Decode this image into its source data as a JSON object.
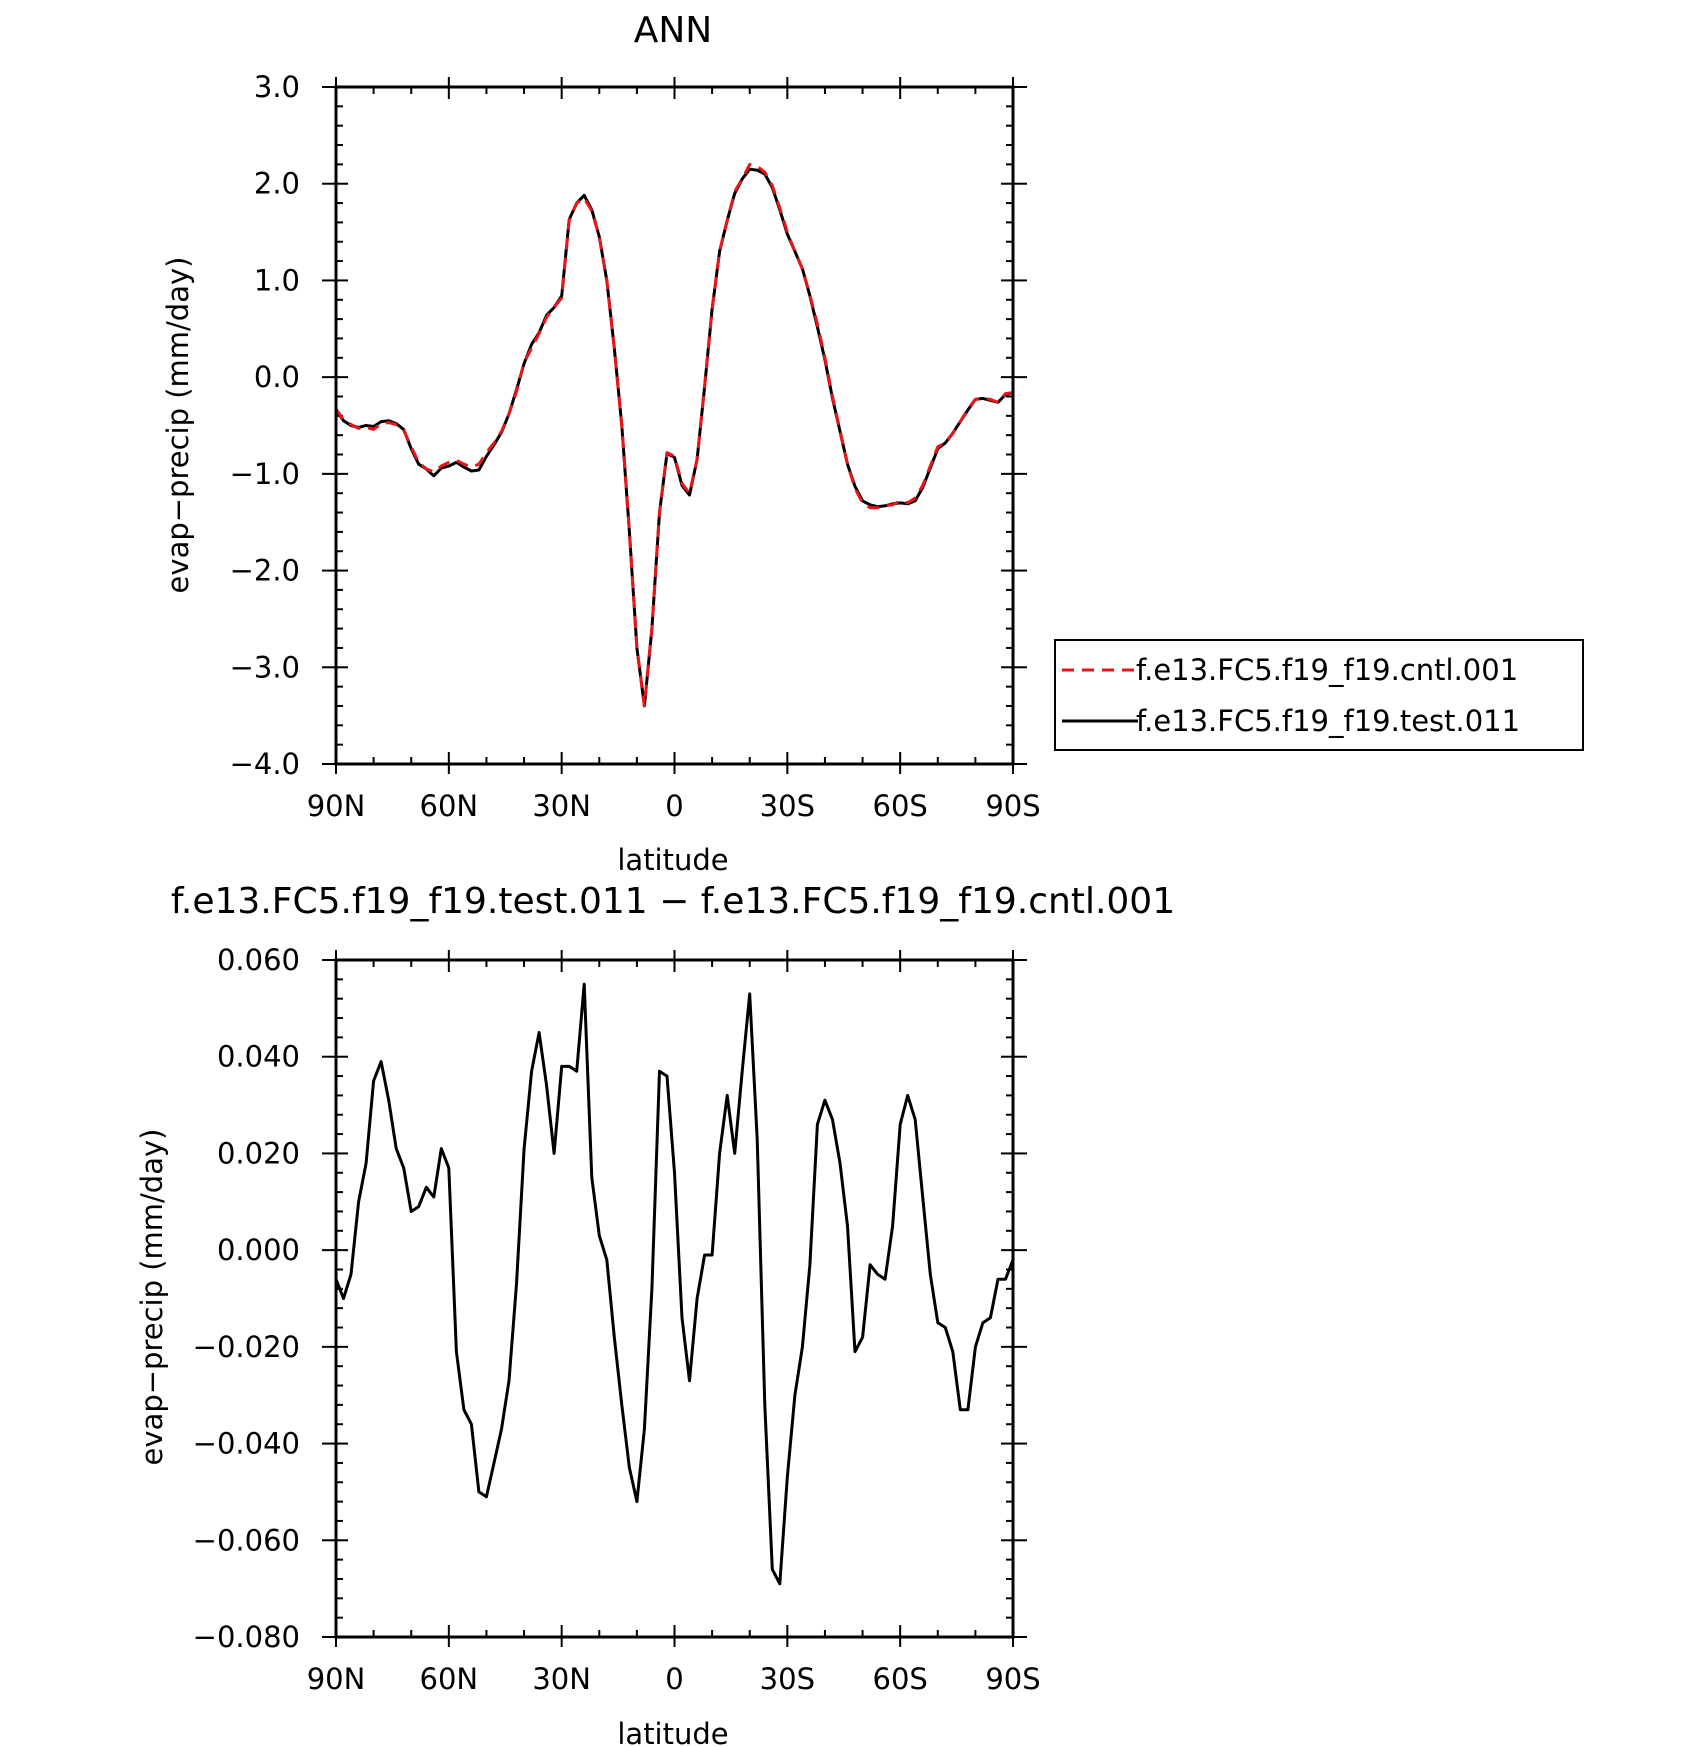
{
  "figure": {
    "top_title": "ANN",
    "bottom_title": "f.e13.FC5.f19_f19.test.011 − f.e13.FC5.f19_f19.cntl.001"
  },
  "chart_data": [
    {
      "id": "top",
      "type": "line",
      "title": "ANN",
      "xlabel": "latitude",
      "ylabel": "evap−precip (mm/day)",
      "xlim": [
        90,
        -90
      ],
      "ylim": [
        -4.0,
        3.0
      ],
      "x_ticks": [
        90,
        60,
        30,
        0,
        -30,
        -60,
        -90
      ],
      "x_tick_labels": [
        "90N",
        "60N",
        "30N",
        "0",
        "30S",
        "60S",
        "90S"
      ],
      "y_ticks": [
        3.0,
        2.0,
        1.0,
        0.0,
        -1.0,
        -2.0,
        -3.0,
        -4.0
      ],
      "y_tick_labels": [
        "3.0",
        "2.0",
        "1.0",
        "0.0",
        "−1.0",
        "−2.0",
        "−3.0",
        "−4.0"
      ],
      "legend": {
        "position": "right",
        "entries": [
          {
            "label": "f.e13.FC5.f19_f19.cntl.001",
            "color": "#e8161a",
            "dash": "dashed"
          },
          {
            "label": "f.e13.FC5.f19_f19.test.011",
            "color": "#000000",
            "dash": "solid"
          }
        ]
      },
      "series": [
        {
          "name": "f.e13.FC5.f19_f19.cntl.001",
          "color": "#e8161a",
          "dash": "dashed",
          "x": [
            90,
            88,
            86,
            84,
            82,
            80,
            78,
            76,
            74,
            72,
            70,
            68,
            66,
            64,
            62,
            60,
            58,
            56,
            54,
            52,
            50,
            48,
            46,
            44,
            42,
            40,
            38,
            36,
            34,
            32,
            30,
            28,
            26,
            24,
            22,
            20,
            18,
            16,
            14,
            12,
            10,
            8,
            6,
            4,
            2,
            0,
            -2,
            -4,
            -6,
            -8,
            -10,
            -12,
            -14,
            -16,
            -18,
            -20,
            -22,
            -24,
            -26,
            -28,
            -30,
            -32,
            -34,
            -36,
            -38,
            -40,
            -42,
            -44,
            -46,
            -48,
            -50,
            -52,
            -54,
            -56,
            -58,
            -60,
            -62,
            -64,
            -66,
            -68,
            -70,
            -72,
            -74,
            -76,
            -78,
            -80,
            -82,
            -84,
            -86,
            -88,
            -90
          ],
          "values": [
            -0.33,
            -0.44,
            -0.49,
            -0.53,
            -0.52,
            -0.54,
            -0.48,
            -0.47,
            -0.49,
            -0.55,
            -0.72,
            -0.88,
            -0.95,
            -0.98,
            -0.92,
            -0.88,
            -0.86,
            -0.9,
            -0.93,
            -0.9,
            -0.78,
            -0.68,
            -0.56,
            -0.38,
            -0.15,
            0.15,
            0.3,
            0.45,
            0.62,
            0.72,
            0.82,
            1.62,
            1.8,
            1.85,
            1.72,
            1.45,
            1.0,
            0.3,
            -0.5,
            -1.6,
            -2.8,
            -3.4,
            -2.6,
            -1.4,
            -0.78,
            -0.82,
            -1.1,
            -1.2,
            -0.85,
            -0.1,
            0.7,
            1.3,
            1.62,
            1.92,
            2.05,
            2.2,
            2.18,
            2.12,
            1.98,
            1.75,
            1.5,
            1.3,
            1.12,
            0.85,
            0.55,
            0.2,
            -0.2,
            -0.55,
            -0.9,
            -1.15,
            -1.3,
            -1.35,
            -1.35,
            -1.33,
            -1.32,
            -1.28,
            -1.3,
            -1.25,
            -1.12,
            -0.92,
            -0.72,
            -0.68,
            -0.58,
            -0.46,
            -0.33,
            -0.23,
            -0.22,
            -0.23,
            -0.26,
            -0.17,
            -0.16
          ]
        },
        {
          "name": "f.e13.FC5.f19_f19.test.011",
          "color": "#000000",
          "dash": "solid",
          "x": [
            90,
            88,
            86,
            84,
            82,
            80,
            78,
            76,
            74,
            72,
            70,
            68,
            66,
            64,
            62,
            60,
            58,
            56,
            54,
            52,
            50,
            48,
            46,
            44,
            42,
            40,
            38,
            36,
            34,
            32,
            30,
            28,
            26,
            24,
            22,
            20,
            18,
            16,
            14,
            12,
            10,
            8,
            6,
            4,
            2,
            0,
            -2,
            -4,
            -6,
            -8,
            -10,
            -12,
            -14,
            -16,
            -18,
            -20,
            -22,
            -24,
            -26,
            -28,
            -30,
            -32,
            -34,
            -36,
            -38,
            -40,
            -42,
            -44,
            -46,
            -48,
            -50,
            -52,
            -54,
            -56,
            -58,
            -60,
            -62,
            -64,
            -66,
            -68,
            -70,
            -72,
            -74,
            -76,
            -78,
            -80,
            -82,
            -84,
            -86,
            -88,
            -90
          ],
          "values": [
            -0.34,
            -0.45,
            -0.5,
            -0.52,
            -0.5,
            -0.51,
            -0.46,
            -0.45,
            -0.48,
            -0.54,
            -0.74,
            -0.9,
            -0.95,
            -1.02,
            -0.94,
            -0.92,
            -0.88,
            -0.93,
            -0.97,
            -0.96,
            -0.82,
            -0.7,
            -0.57,
            -0.38,
            -0.13,
            0.14,
            0.34,
            0.46,
            0.64,
            0.72,
            0.84,
            1.63,
            1.8,
            1.88,
            1.73,
            1.45,
            1.0,
            0.3,
            -0.5,
            -1.6,
            -2.8,
            -3.4,
            -2.6,
            -1.4,
            -0.79,
            -0.83,
            -1.12,
            -1.22,
            -0.85,
            -0.1,
            0.7,
            1.3,
            1.62,
            1.9,
            2.05,
            2.15,
            2.14,
            2.1,
            1.96,
            1.73,
            1.48,
            1.3,
            1.12,
            0.84,
            0.52,
            0.18,
            -0.22,
            -0.56,
            -0.9,
            -1.13,
            -1.28,
            -1.32,
            -1.34,
            -1.33,
            -1.31,
            -1.3,
            -1.31,
            -1.28,
            -1.14,
            -0.94,
            -0.74,
            -0.68,
            -0.58,
            -0.46,
            -0.34,
            -0.23,
            -0.22,
            -0.24,
            -0.26,
            -0.18,
            -0.16
          ]
        }
      ]
    },
    {
      "id": "bottom",
      "type": "line",
      "title": "f.e13.FC5.f19_f19.test.011 − f.e13.FC5.f19_f19.cntl.001",
      "xlabel": "latitude",
      "ylabel": "evap−precip (mm/day)",
      "xlim": [
        90,
        -90
      ],
      "ylim": [
        -0.08,
        0.06
      ],
      "x_ticks": [
        90,
        60,
        30,
        0,
        -30,
        -60,
        -90
      ],
      "x_tick_labels": [
        "90N",
        "60N",
        "30N",
        "0",
        "30S",
        "60S",
        "90S"
      ],
      "y_ticks": [
        0.06,
        0.04,
        0.02,
        0.0,
        -0.02,
        -0.04,
        -0.06,
        -0.08
      ],
      "y_tick_labels": [
        "0.060",
        "0.040",
        "0.020",
        "0.000",
        "−0.020",
        "−0.040",
        "−0.060",
        "−0.080"
      ],
      "series": [
        {
          "color": "#000000",
          "dash": "solid",
          "x": [
            90,
            88,
            86,
            84,
            82,
            80,
            78,
            76,
            74,
            72,
            70,
            68,
            66,
            64,
            62,
            60,
            58,
            56,
            54,
            52,
            50,
            48,
            46,
            44,
            42,
            40,
            38,
            36,
            34,
            32,
            30,
            28,
            26,
            24,
            22,
            20,
            18,
            16,
            14,
            12,
            10,
            8,
            6,
            4,
            2,
            0,
            -2,
            -4,
            -6,
            -8,
            -10,
            -12,
            -14,
            -16,
            -18,
            -20,
            -22,
            -24,
            -26,
            -28,
            -30,
            -32,
            -34,
            -36,
            -38,
            -40,
            -42,
            -44,
            -46,
            -48,
            -50,
            -52,
            -54,
            -56,
            -58,
            -60,
            -62,
            -64,
            -66,
            -68,
            -70,
            -72,
            -74,
            -76,
            -78,
            -80,
            -82,
            -84,
            -86,
            -88,
            -90
          ],
          "values": [
            -0.006,
            -0.01,
            -0.005,
            0.01,
            0.018,
            0.035,
            0.039,
            0.031,
            0.021,
            0.017,
            0.008,
            0.009,
            0.013,
            0.011,
            0.021,
            0.017,
            -0.021,
            -0.033,
            -0.036,
            -0.05,
            -0.051,
            -0.044,
            -0.037,
            -0.027,
            -0.007,
            0.021,
            0.037,
            0.045,
            0.034,
            0.02,
            0.038,
            0.038,
            0.037,
            0.055,
            0.015,
            0.003,
            -0.002,
            -0.018,
            -0.032,
            -0.045,
            -0.052,
            -0.037,
            -0.008,
            0.037,
            0.036,
            0.016,
            -0.014,
            -0.027,
            -0.01,
            -0.001,
            -0.001,
            0.02,
            0.032,
            0.02,
            0.037,
            0.053,
            0.023,
            -0.032,
            -0.066,
            -0.069,
            -0.047,
            -0.03,
            -0.02,
            -0.003,
            0.026,
            0.031,
            0.027,
            0.018,
            0.005,
            -0.021,
            -0.018,
            -0.003,
            -0.005,
            -0.006,
            0.005,
            0.026,
            0.032,
            0.027,
            0.011,
            -0.005,
            -0.015,
            -0.016,
            -0.021,
            -0.033,
            -0.033,
            -0.02,
            -0.015,
            -0.014,
            -0.006,
            -0.006,
            -0.002
          ]
        }
      ]
    }
  ]
}
